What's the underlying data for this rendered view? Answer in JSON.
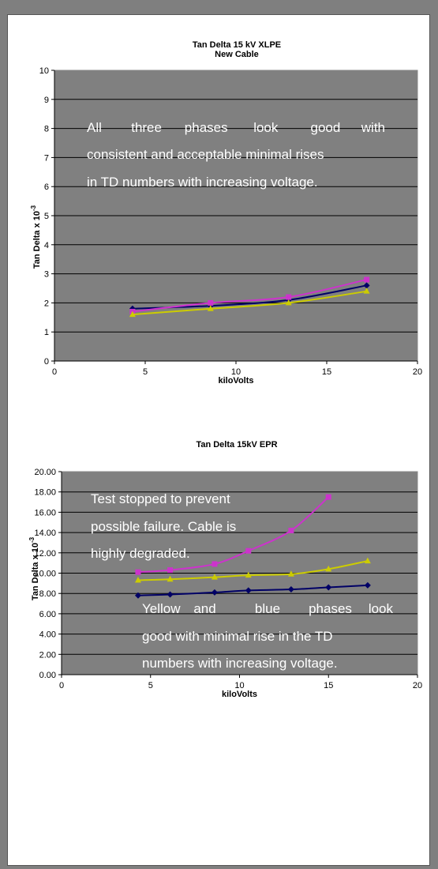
{
  "chart_data": [
    {
      "type": "line",
      "title": "Tan Delta 15 kV XLPE",
      "subtitle": "New Cable",
      "xlabel": "kiloVolts",
      "ylabel": "Tan Delta x 10",
      "ylabel_exponent": "-3",
      "xlim": [
        0,
        20
      ],
      "ylim": [
        0,
        10
      ],
      "x_ticks": [
        "0",
        "5",
        "10",
        "15",
        "20"
      ],
      "y_ticks": [
        "0",
        "1",
        "2",
        "3",
        "4",
        "5",
        "6",
        "7",
        "8",
        "9",
        "10"
      ],
      "grid": "horizontal",
      "plot_background": "#808080",
      "series": [
        {
          "color": "#000066",
          "marker": "diamond",
          "x": [
            4.3,
            8.6,
            12.9,
            17.2
          ],
          "values": [
            1.8,
            1.9,
            2.1,
            2.6
          ]
        },
        {
          "color": "#cc33cc",
          "marker": "square",
          "x": [
            4.3,
            8.6,
            12.9,
            17.2
          ],
          "values": [
            1.7,
            2.0,
            2.2,
            2.8
          ]
        },
        {
          "color": "#cccc00",
          "marker": "triangle",
          "x": [
            4.3,
            8.6,
            12.9,
            17.2
          ],
          "values": [
            1.6,
            1.8,
            2.0,
            2.4
          ]
        }
      ],
      "annotations": [
        "All three phases look good with consistent and acceptable minimal rises in TD numbers with increasing voltage."
      ],
      "annotation_lines": [
        [
          "All",
          "three",
          "phases",
          "look",
          "good",
          "with"
        ],
        [
          "consistent and acceptable minimal rises"
        ],
        [
          "in TD numbers with increasing voltage."
        ]
      ]
    },
    {
      "type": "line",
      "title": "Tan Delta 15kV EPR",
      "xlabel": "kiloVolts",
      "ylabel": "Tan Delta x 10",
      "ylabel_exponent": "-3",
      "xlim": [
        0,
        20
      ],
      "ylim": [
        0,
        20
      ],
      "x_ticks": [
        "0",
        "5",
        "10",
        "15",
        "20"
      ],
      "y_ticks": [
        "0.00",
        "2.00",
        "4.00",
        "6.00",
        "8.00",
        "10.00",
        "12.00",
        "14.00",
        "16.00",
        "18.00",
        "20.00"
      ],
      "grid": "horizontal",
      "plot_background": "#808080",
      "series": [
        {
          "color": "#000066",
          "marker": "diamond",
          "x": [
            4.3,
            6.1,
            8.6,
            10.5,
            12.9,
            15.0,
            17.2
          ],
          "values": [
            7.8,
            7.9,
            8.1,
            8.3,
            8.4,
            8.6,
            8.8
          ]
        },
        {
          "color": "#cccc00",
          "marker": "triangle",
          "x": [
            4.3,
            6.1,
            8.6,
            10.5,
            12.9,
            15.0,
            17.2
          ],
          "values": [
            9.3,
            9.4,
            9.6,
            9.8,
            9.9,
            10.4,
            11.2
          ]
        },
        {
          "color": "#cc33cc",
          "marker": "square",
          "x": [
            4.3,
            6.1,
            8.6,
            10.5,
            12.9,
            15.0
          ],
          "values": [
            10.1,
            10.3,
            10.9,
            12.2,
            14.2,
            17.5
          ]
        }
      ],
      "annotations": [
        "Test stopped to prevent possible failure. Cable is highly degraded.",
        "Yellow and blue phases look good with minimal rise in the TD numbers with increasing voltage."
      ],
      "annotation_lines": [
        [
          "Test stopped to prevent"
        ],
        [
          "possible failure. Cable is"
        ],
        [
          "highly degraded."
        ],
        [
          "Yellow",
          "and",
          "blue",
          "phases",
          "look"
        ],
        [
          "good with minimal rise in the TD"
        ],
        [
          "numbers with increasing voltage."
        ]
      ]
    }
  ]
}
